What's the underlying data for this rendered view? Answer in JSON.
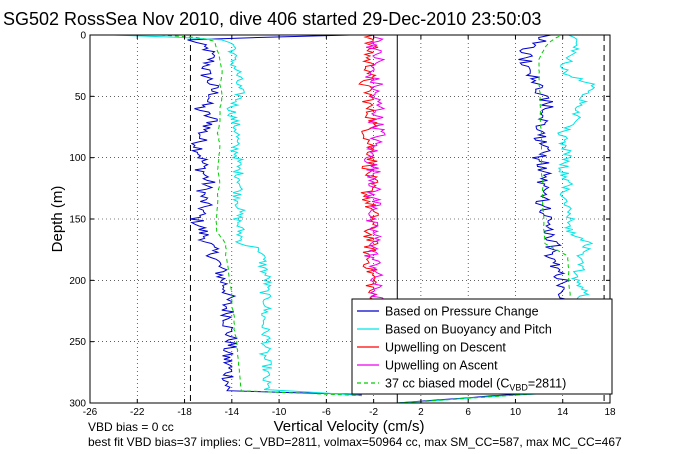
{
  "chart_data": {
    "type": "line",
    "title": "SG502 RossSea Nov 2010, dive 406 started 29-Dec-2010 23:50:03",
    "xlabel": "Vertical Velocity (cm/s)",
    "ylabel": "Depth (m)",
    "xlim": [
      -26,
      18
    ],
    "ylim": [
      0,
      300
    ],
    "y_reversed": true,
    "grid": true,
    "x_ticks": [
      -26,
      -22,
      -18,
      -14,
      -10,
      -6,
      -2,
      2,
      6,
      10,
      14,
      18
    ],
    "y_ticks": [
      0,
      50,
      100,
      150,
      200,
      250,
      300
    ],
    "reference_lines": [
      {
        "x": -17.5,
        "side": "descent",
        "style": "dashed"
      },
      {
        "x": 17.5,
        "side": "ascent",
        "style": "dashed"
      },
      {
        "x": 0,
        "style": "solid"
      }
    ],
    "legend_position": "bottom-right",
    "colors": {
      "pressure": "#0000cc",
      "buoyancy": "#00e5e5",
      "up_descent": "#ff0000",
      "up_ascent": "#ee00ee",
      "model": "#00cc00"
    },
    "series": [
      {
        "name": "Based on Pressure Change",
        "key": "pressure",
        "style": "solid",
        "descent": {
          "depth": [
            0,
            2,
            4,
            6,
            8,
            12,
            20,
            30,
            40,
            50,
            60,
            70,
            80,
            90,
            100,
            110,
            120,
            130,
            140,
            150,
            160,
            170,
            180,
            190,
            200,
            210,
            220,
            230,
            240,
            250,
            260,
            270,
            280,
            290,
            293
          ],
          "w": [
            -4,
            -12,
            -17.5,
            -17.2,
            -16.8,
            -16.0,
            -15.8,
            -16.3,
            -15.7,
            -15.5,
            -16.8,
            -15.5,
            -16.5,
            -16.8,
            -16.5,
            -16.5,
            -16.0,
            -16.5,
            -16.3,
            -17.0,
            -16.5,
            -16.0,
            -15.5,
            -15.0,
            -14.8,
            -14.3,
            -14.5,
            -14.2,
            -14.3,
            -14.0,
            -14.5,
            -14.3,
            -14.2,
            -14.5,
            -3
          ]
        },
        "ascent": {
          "depth": [
            300,
            290,
            280,
            270,
            260,
            250,
            240,
            230,
            220,
            210,
            200,
            190,
            180,
            170,
            160,
            150,
            140,
            130,
            120,
            110,
            100,
            90,
            80,
            70,
            60,
            50,
            40,
            30,
            20,
            10,
            5,
            2,
            0
          ],
          "w": [
            0,
            14.0,
            14.2,
            14.5,
            14.0,
            13.8,
            14.0,
            14.2,
            14.0,
            14.2,
            14.0,
            13.5,
            13.0,
            13.2,
            12.5,
            12.8,
            12.5,
            12.0,
            12.3,
            12.5,
            12.0,
            12.5,
            12.0,
            12.5,
            12.8,
            12.5,
            11.8,
            11.5,
            10.8,
            11.0,
            12.0,
            12.5,
            13.0
          ]
        }
      },
      {
        "name": "Based on Buoyancy and Pitch",
        "key": "buoyancy",
        "style": "solid",
        "descent": {
          "depth": [
            0,
            2,
            4,
            6,
            8,
            12,
            20,
            30,
            40,
            50,
            60,
            70,
            80,
            90,
            100,
            110,
            120,
            130,
            140,
            150,
            160,
            170,
            175,
            180,
            190,
            200,
            210,
            220,
            230,
            240,
            250,
            260,
            270,
            280,
            289,
            292,
            294
          ],
          "w": [
            -24,
            -18,
            -15.0,
            -14.2,
            -13.8,
            -13.8,
            -14.0,
            -13.5,
            -13.5,
            -13.3,
            -14.0,
            -13.8,
            -13.5,
            -13.8,
            -13.5,
            -13.5,
            -13.2,
            -13.5,
            -13.3,
            -13.5,
            -13.3,
            -13.2,
            -11.5,
            -11.5,
            -11.3,
            -11.0,
            -11.2,
            -11.0,
            -11.3,
            -11.2,
            -11.0,
            -11.3,
            -11.0,
            -11.2,
            -11.0,
            -6,
            -3
          ]
        },
        "ascent": {
          "depth": [
            300,
            290,
            280,
            270,
            260,
            250,
            240,
            230,
            220,
            210,
            200,
            190,
            180,
            170,
            160,
            150,
            140,
            130,
            120,
            110,
            100,
            90,
            80,
            70,
            60,
            50,
            40,
            30,
            20,
            10,
            5,
            2,
            0
          ],
          "w": [
            0,
            15.5,
            15.8,
            15.5,
            15.2,
            15.5,
            15.3,
            15.5,
            15.2,
            16.0,
            15.0,
            15.5,
            15.2,
            16.5,
            14.5,
            14.8,
            14.5,
            14.0,
            14.5,
            14.0,
            14.5,
            14.2,
            14.0,
            15.0,
            15.5,
            16.0,
            16.5,
            14.0,
            14.5,
            15.0,
            15.5,
            15.0,
            14.5
          ]
        }
      },
      {
        "name": "Upwelling on Descent",
        "key": "up_descent",
        "style": "solid",
        "depth": [
          0,
          5,
          10,
          20,
          30,
          40,
          50,
          60,
          70,
          80,
          90,
          100,
          110,
          120,
          130,
          140,
          150,
          160,
          170,
          180,
          190,
          200,
          210,
          220
        ],
        "w": [
          -2,
          -2.5,
          -2.2,
          -2.5,
          -2.2,
          -2.8,
          -2.3,
          -2.5,
          -2.0,
          -2.5,
          -2.3,
          -2.0,
          -2.5,
          -2.2,
          -2.6,
          -2.3,
          -2.0,
          -2.4,
          -2.2,
          -2.5,
          -2.3,
          -2.0,
          -2.3,
          -2.1
        ]
      },
      {
        "name": "Upwelling on Ascent",
        "key": "up_ascent",
        "style": "solid",
        "depth": [
          0,
          5,
          10,
          20,
          30,
          40,
          50,
          60,
          70,
          80,
          90,
          100,
          110,
          120,
          130,
          140,
          150,
          160,
          170,
          180,
          190,
          200,
          210,
          220,
          230,
          240
        ],
        "w": [
          -2.0,
          -1.5,
          -2.0,
          -1.6,
          -2.4,
          -1.8,
          -2.0,
          -1.5,
          -1.8,
          -1.5,
          -2.0,
          -2.3,
          -2.0,
          -1.8,
          -2.2,
          -1.6,
          -2.4,
          -2.0,
          -1.8,
          -2.2,
          -1.7,
          -2.0,
          -1.8,
          -1.6,
          -2.0,
          -1.8
        ]
      },
      {
        "name": "37 cc biased model (C",
        "legend_sub": "VBD",
        "legend_tail": "=2811)",
        "key": "model",
        "style": "dashed",
        "descent": {
          "depth": [
            0,
            2,
            5,
            10,
            20,
            30,
            40,
            50,
            60,
            70,
            80,
            90,
            100,
            110,
            120,
            130,
            140,
            150,
            160,
            170,
            180,
            190,
            200,
            210,
            220,
            230,
            240,
            250,
            260,
            270,
            280,
            290,
            294
          ],
          "w": [
            -20,
            -17,
            -15.5,
            -15.3,
            -15.0,
            -14.8,
            -15.0,
            -14.8,
            -15.0,
            -15.0,
            -15.2,
            -15.0,
            -15.1,
            -15.2,
            -15.0,
            -15.2,
            -15.2,
            -15.3,
            -15.3,
            -14.5,
            -14.5,
            -14.3,
            -14.2,
            -14.0,
            -14.0,
            -13.8,
            -13.8,
            -13.6,
            -13.5,
            -13.4,
            -13.3,
            -13.2,
            -3
          ]
        },
        "ascent": {
          "depth": [
            300,
            290,
            280,
            270,
            260,
            250,
            240,
            230,
            220,
            210,
            200,
            190,
            180,
            170,
            160,
            150,
            140,
            130,
            120,
            110,
            100,
            90,
            80,
            70,
            60,
            50,
            40,
            30,
            20,
            10,
            5,
            2,
            0
          ],
          "w": [
            0,
            15.5,
            15.3,
            15.2,
            15.0,
            14.9,
            14.8,
            14.7,
            14.7,
            14.6,
            14.5,
            14.5,
            14.4,
            12.5,
            12.4,
            12.4,
            12.3,
            12.3,
            12.3,
            12.2,
            12.2,
            12.2,
            12.2,
            12.1,
            12.1,
            12.1,
            12.0,
            12.0,
            12.0,
            12.5,
            13.0,
            13.5,
            14.0
          ]
        }
      }
    ]
  },
  "footer": {
    "line1": "VBD bias = 0 cc",
    "line2": "best fit VBD bias=37 implies: C_VBD=2811, volmax=50964 cc, max SM_CC=587, max MC_CC=467"
  }
}
